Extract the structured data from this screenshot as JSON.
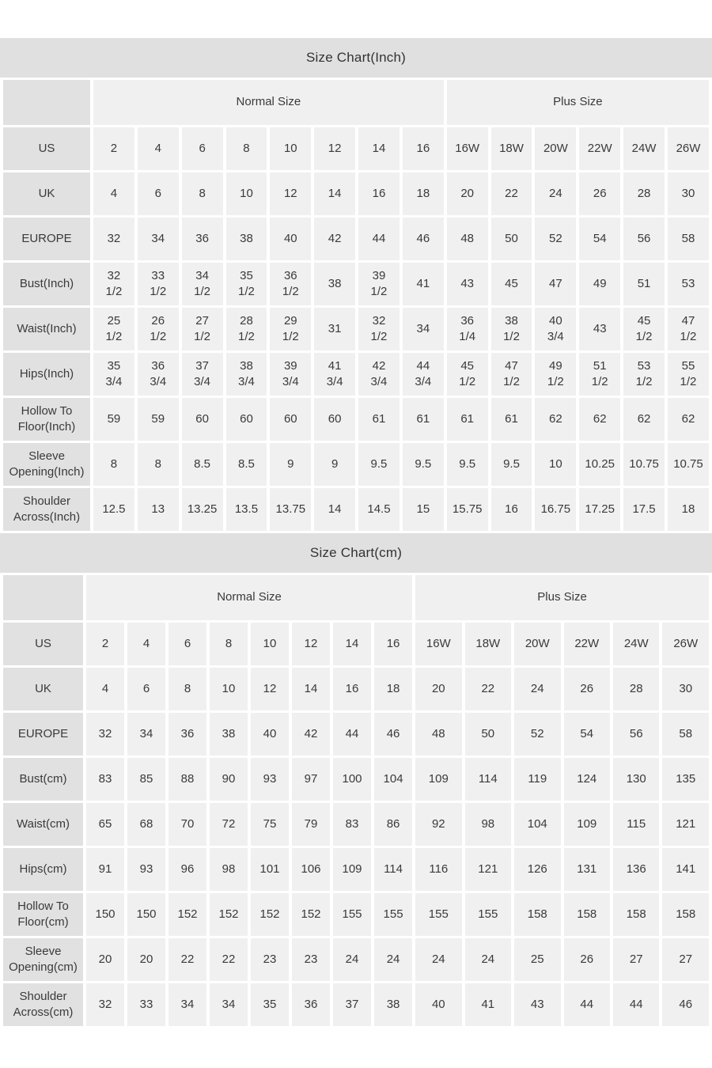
{
  "colors": {
    "title_bar": "#e0e0e0",
    "label_cell": "#e1e1e1",
    "data_cell": "#f0f0f0",
    "text": "#3a3a3a",
    "background": "#ffffff"
  },
  "tables": [
    {
      "id": "inch",
      "title": "Size Chart(Inch)",
      "groups": [
        {
          "label": "Normal Size",
          "span": 8
        },
        {
          "label": "Plus Size",
          "span": 6
        }
      ],
      "rows": [
        {
          "label": "US",
          "values": [
            "2",
            "4",
            "6",
            "8",
            "10",
            "12",
            "14",
            "16",
            "16W",
            "18W",
            "20W",
            "22W",
            "24W",
            "26W"
          ]
        },
        {
          "label": "UK",
          "values": [
            "4",
            "6",
            "8",
            "10",
            "12",
            "14",
            "16",
            "18",
            "20",
            "22",
            "24",
            "26",
            "28",
            "30"
          ]
        },
        {
          "label": "EUROPE",
          "values": [
            "32",
            "34",
            "36",
            "38",
            "40",
            "42",
            "44",
            "46",
            "48",
            "50",
            "52",
            "54",
            "56",
            "58"
          ]
        },
        {
          "label": "Bust(Inch)",
          "values": [
            "32 1/2",
            "33 1/2",
            "34 1/2",
            "35 1/2",
            "36 1/2",
            "38",
            "39 1/2",
            "41",
            "43",
            "45",
            "47",
            "49",
            "51",
            "53"
          ]
        },
        {
          "label": "Waist(Inch)",
          "values": [
            "25 1/2",
            "26 1/2",
            "27 1/2",
            "28 1/2",
            "29 1/2",
            "31",
            "32 1/2",
            "34",
            "36 1/4",
            "38 1/2",
            "40 3/4",
            "43",
            "45 1/2",
            "47 1/2"
          ]
        },
        {
          "label": "Hips(Inch)",
          "values": [
            "35 3/4",
            "36 3/4",
            "37 3/4",
            "38 3/4",
            "39 3/4",
            "41 3/4",
            "42 3/4",
            "44 3/4",
            "45 1/2",
            "47 1/2",
            "49 1/2",
            "51 1/2",
            "53 1/2",
            "55 1/2"
          ]
        },
        {
          "label": "Hollow To Floor(Inch)",
          "values": [
            "59",
            "59",
            "60",
            "60",
            "60",
            "60",
            "61",
            "61",
            "61",
            "61",
            "62",
            "62",
            "62",
            "62"
          ]
        },
        {
          "label": "Sleeve Opening(Inch)",
          "values": [
            "8",
            "8",
            "8.5",
            "8.5",
            "9",
            "9",
            "9.5",
            "9.5",
            "9.5",
            "9.5",
            "10",
            "10.25",
            "10.75",
            "10.75"
          ]
        },
        {
          "label": "Shoulder Across(Inch)",
          "values": [
            "12.5",
            "13",
            "13.25",
            "13.5",
            "13.75",
            "14",
            "14.5",
            "15",
            "15.75",
            "16",
            "16.75",
            "17.25",
            "17.5",
            "18"
          ]
        }
      ]
    },
    {
      "id": "cm",
      "title": "Size Chart(cm)",
      "groups": [
        {
          "label": "Normal Size",
          "span": 8
        },
        {
          "label": "Plus Size",
          "span": 6
        }
      ],
      "rows": [
        {
          "label": "US",
          "values": [
            "2",
            "4",
            "6",
            "8",
            "10",
            "12",
            "14",
            "16",
            "16W",
            "18W",
            "20W",
            "22W",
            "24W",
            "26W"
          ]
        },
        {
          "label": "UK",
          "values": [
            "4",
            "6",
            "8",
            "10",
            "12",
            "14",
            "16",
            "18",
            "20",
            "22",
            "24",
            "26",
            "28",
            "30"
          ]
        },
        {
          "label": "EUROPE",
          "values": [
            "32",
            "34",
            "36",
            "38",
            "40",
            "42",
            "44",
            "46",
            "48",
            "50",
            "52",
            "54",
            "56",
            "58"
          ]
        },
        {
          "label": "Bust(cm)",
          "values": [
            "83",
            "85",
            "88",
            "90",
            "93",
            "97",
            "100",
            "104",
            "109",
            "114",
            "119",
            "124",
            "130",
            "135"
          ]
        },
        {
          "label": "Waist(cm)",
          "values": [
            "65",
            "68",
            "70",
            "72",
            "75",
            "79",
            "83",
            "86",
            "92",
            "98",
            "104",
            "109",
            "115",
            "121"
          ]
        },
        {
          "label": "Hips(cm)",
          "values": [
            "91",
            "93",
            "96",
            "98",
            "101",
            "106",
            "109",
            "114",
            "116",
            "121",
            "126",
            "131",
            "136",
            "141"
          ]
        },
        {
          "label": "Hollow To Floor(cm)",
          "values": [
            "150",
            "150",
            "152",
            "152",
            "152",
            "152",
            "155",
            "155",
            "155",
            "155",
            "158",
            "158",
            "158",
            "158"
          ]
        },
        {
          "label": "Sleeve Opening(cm)",
          "values": [
            "20",
            "20",
            "22",
            "22",
            "23",
            "23",
            "24",
            "24",
            "24",
            "24",
            "25",
            "26",
            "27",
            "27"
          ]
        },
        {
          "label": "Shoulder Across(cm)",
          "values": [
            "32",
            "33",
            "34",
            "34",
            "35",
            "36",
            "37",
            "38",
            "40",
            "41",
            "43",
            "44",
            "44",
            "46"
          ]
        }
      ]
    }
  ]
}
